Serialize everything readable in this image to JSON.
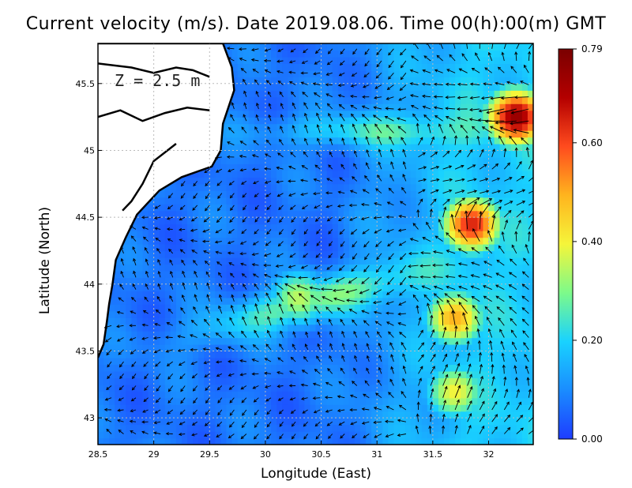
{
  "title": "Current velocity (m/s). Date 2019.08.06. Time 00(h):00(m) GMT",
  "depth_label": "Z = 2.5 m",
  "colorbar": {
    "ticks": [
      "0.00",
      "0.20",
      "0.40",
      "0.60",
      "0.79"
    ],
    "min": 0.0,
    "max": 0.79,
    "colors": [
      "#1e3cff",
      "#1a8cff",
      "#19d2ff",
      "#7dfa8a",
      "#f5f53a",
      "#ffb41e",
      "#ff4b1e",
      "#b40000",
      "#7a0000"
    ]
  },
  "chart_data": {
    "type": "heatmap",
    "title": "Current velocity (m/s). Date 2019.08.06. Time 00(h):00(m) GMT",
    "xlabel": "Longitude (East)",
    "ylabel": "Latitude (North)",
    "xlim": [
      28.5,
      32.4
    ],
    "ylim": [
      42.8,
      45.8
    ],
    "x_ticks": [
      "28.5",
      "29",
      "29.5",
      "30",
      "30.5",
      "31",
      "31.5",
      "32"
    ],
    "y_ticks": [
      "43",
      "43.5",
      "44",
      "44.5",
      "45",
      "45.5"
    ],
    "grid": true,
    "speed_scale_range": [
      0.0,
      0.79
    ],
    "high_speed_features": [
      {
        "lon": 32.25,
        "lat": 45.25,
        "speed": 0.75
      },
      {
        "lon": 31.85,
        "lat": 44.45,
        "speed": 0.65
      },
      {
        "lon": 31.7,
        "lat": 43.75,
        "speed": 0.5
      },
      {
        "lon": 30.3,
        "lat": 43.9,
        "speed": 0.35
      },
      {
        "lon": 31.7,
        "lat": 43.2,
        "speed": 0.4
      }
    ]
  }
}
